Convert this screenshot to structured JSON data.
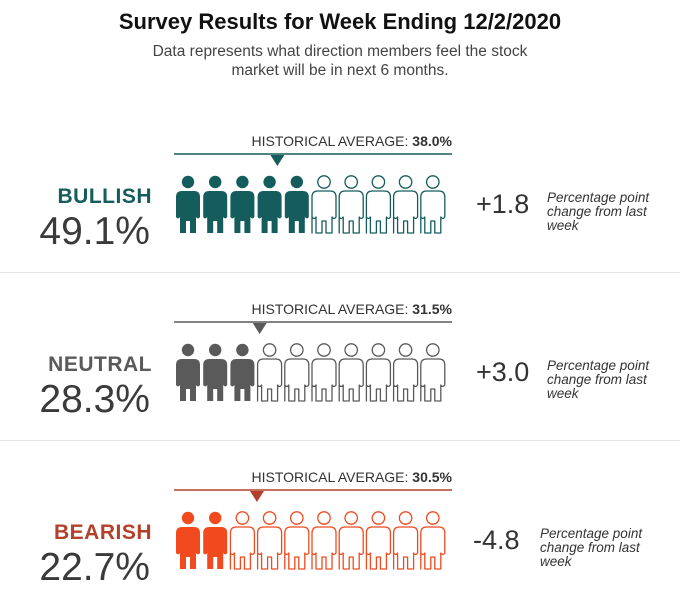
{
  "title": "Survey Results for Week Ending 12/2/2020",
  "subtitle": "Data represents what direction members feel the stock market will be in next 6 months.",
  "hist_prefix": "HISTORICAL AVERAGE: ",
  "change_note": "Percentage point change from last week",
  "chart_data": {
    "type": "pictograph",
    "icons_per_row": 10,
    "icon_unit_percent": 10,
    "categories": [
      {
        "label": "BULLISH",
        "value_text": "49.1%",
        "value": 49.1,
        "historical_text": "38.0%",
        "historical": 38.0,
        "change_text": "+1.8",
        "change": 1.8,
        "color": "#155c5c"
      },
      {
        "label": "NEUTRAL",
        "value_text": "28.3%",
        "value": 28.3,
        "historical_text": "31.5%",
        "historical": 31.5,
        "change_text": "+3.0",
        "change": 3.0,
        "color": "#5a5a5a"
      },
      {
        "label": "BEARISH",
        "value_text": "22.7%",
        "value": 22.7,
        "historical_text": "30.5%",
        "historical": 30.5,
        "change_text": "-4.8",
        "change": -4.8,
        "color": "#b3402a",
        "icon_color": "#f04a1e"
      }
    ]
  }
}
